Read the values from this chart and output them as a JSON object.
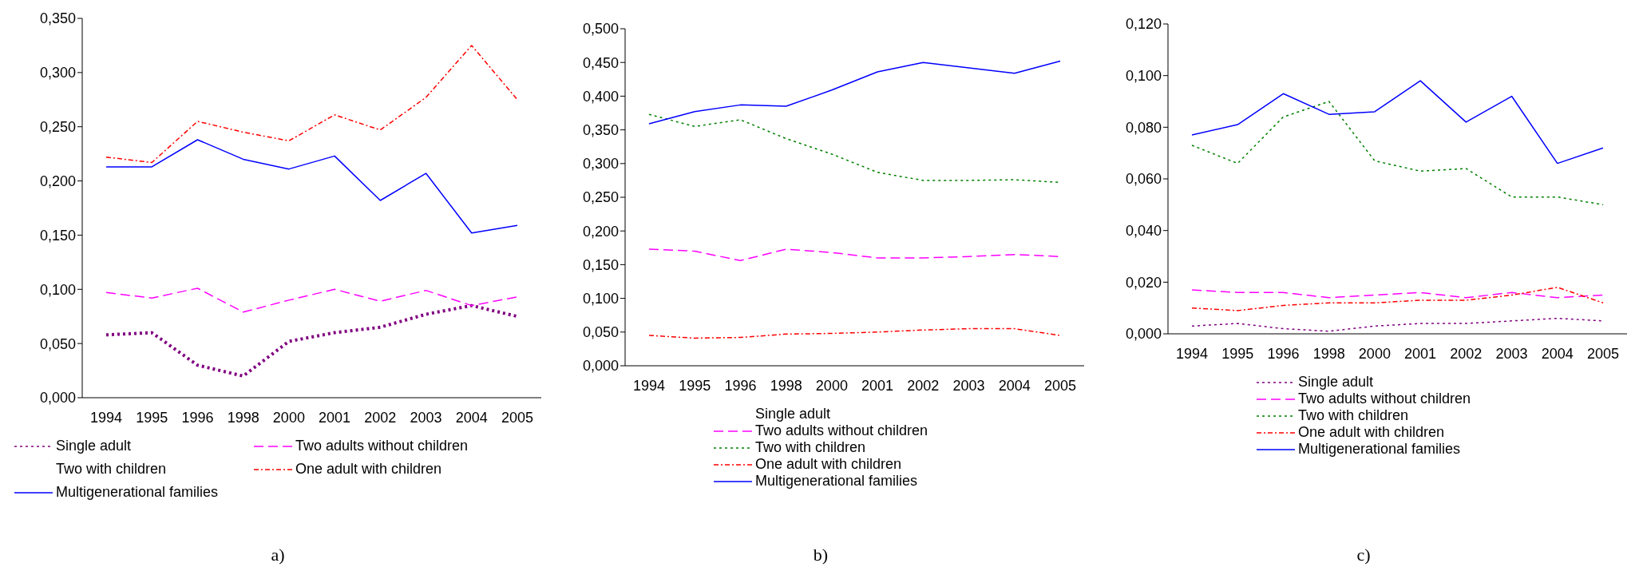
{
  "chart_data": [
    {
      "type": "line",
      "categories": [
        "1994",
        "1995",
        "1996",
        "1998",
        "2000",
        "2001",
        "2002",
        "2003",
        "2004",
        "2005"
      ],
      "ylim": [
        0,
        0.35
      ],
      "yticks": [
        {
          "value": 0,
          "label": "0,000"
        },
        {
          "value": 0.05,
          "label": "0,050"
        },
        {
          "value": 0.1,
          "label": "0,100"
        },
        {
          "value": 0.15,
          "label": "0,150"
        },
        {
          "value": 0.2,
          "label": "0,200"
        },
        {
          "value": 0.25,
          "label": "0,250"
        },
        {
          "value": 0.3,
          "label": "0,300"
        },
        {
          "value": 0.35,
          "label": "0,350"
        }
      ],
      "grid": false,
      "legend": "bottom",
      "annotations": [
        "a)"
      ],
      "series": [
        {
          "name": "Single adult",
          "color": "#800080",
          "line_style": "dotted",
          "values": [
            0.058,
            0.06,
            0.03,
            0.02,
            0.052,
            0.06,
            0.065,
            0.077,
            0.085,
            0.075
          ]
        },
        {
          "name": "Two adults without children",
          "color": "#ff00ff",
          "line_style": "dashed",
          "values": [
            0.097,
            0.092,
            0.101,
            0.079,
            0.09,
            0.1,
            0.089,
            0.099,
            0.085,
            0.093
          ]
        },
        {
          "name": "Two with children",
          "values": [
            null,
            null,
            null,
            null,
            null,
            null,
            null,
            null,
            null,
            null
          ]
        },
        {
          "name": "One adult with children",
          "color": "#ff0000",
          "line_style": "dashdot",
          "values": [
            0.222,
            0.217,
            0.255,
            0.245,
            0.237,
            0.261,
            0.247,
            0.277,
            0.325,
            0.275
          ]
        },
        {
          "name": "Multigenerational families",
          "color": "#0000ff",
          "line_style": "solid",
          "values": [
            0.213,
            0.213,
            0.238,
            0.22,
            0.211,
            0.223,
            0.182,
            0.207,
            0.152,
            0.159
          ]
        }
      ]
    },
    {
      "type": "line",
      "categories": [
        "1994",
        "1995",
        "1996",
        "1998",
        "2000",
        "2001",
        "2002",
        "2003",
        "2004",
        "2005"
      ],
      "ylim": [
        0,
        0.5
      ],
      "yticks": [
        {
          "value": 0,
          "label": "0,000"
        },
        {
          "value": 0.05,
          "label": "0,050"
        },
        {
          "value": 0.1,
          "label": "0,100"
        },
        {
          "value": 0.15,
          "label": "0,150"
        },
        {
          "value": 0.2,
          "label": "0,200"
        },
        {
          "value": 0.25,
          "label": "0,250"
        },
        {
          "value": 0.3,
          "label": "0,300"
        },
        {
          "value": 0.35,
          "label": "0,350"
        },
        {
          "value": 0.4,
          "label": "0,400"
        },
        {
          "value": 0.45,
          "label": "0,450"
        },
        {
          "value": 0.5,
          "label": "0,500"
        }
      ],
      "grid": false,
      "legend": "bottom",
      "annotations": [
        "b)"
      ],
      "series": [
        {
          "name": "Single adult",
          "values": [
            null,
            null,
            null,
            null,
            null,
            null,
            null,
            null,
            null,
            null
          ]
        },
        {
          "name": "Two adults without children",
          "color": "#ff00ff",
          "line_style": "dashed",
          "values": [
            0.173,
            0.17,
            0.156,
            0.173,
            0.168,
            0.16,
            0.16,
            0.162,
            0.165,
            0.162
          ]
        },
        {
          "name": "Two with children",
          "color": "#008000",
          "line_style": "dotted",
          "values": [
            0.373,
            0.355,
            0.365,
            0.337,
            0.314,
            0.287,
            0.275,
            0.275,
            0.276,
            0.272
          ]
        },
        {
          "name": "One adult with children",
          "color": "#ff0000",
          "line_style": "dashdot",
          "values": [
            0.045,
            0.041,
            0.042,
            0.047,
            0.048,
            0.05,
            0.053,
            0.055,
            0.055,
            0.045
          ]
        },
        {
          "name": "Multigenerational families",
          "color": "#0000ff",
          "line_style": "solid",
          "values": [
            0.359,
            0.377,
            0.387,
            0.385,
            0.409,
            0.436,
            0.45,
            0.442,
            0.434,
            0.452
          ]
        }
      ]
    },
    {
      "type": "line",
      "categories": [
        "1994",
        "1995",
        "1996",
        "1998",
        "2000",
        "2001",
        "2002",
        "2003",
        "2004",
        "2005"
      ],
      "ylim": [
        0,
        0.12
      ],
      "yticks": [
        {
          "value": 0,
          "label": "0,000"
        },
        {
          "value": 0.02,
          "label": "0,020"
        },
        {
          "value": 0.04,
          "label": "0,040"
        },
        {
          "value": 0.06,
          "label": "0,060"
        },
        {
          "value": 0.08,
          "label": "0,080"
        },
        {
          "value": 0.1,
          "label": "0,100"
        },
        {
          "value": 0.12,
          "label": "0,120"
        }
      ],
      "grid": false,
      "legend": "bottom",
      "annotations": [
        "c)"
      ],
      "series": [
        {
          "name": "Single adult",
          "color": "#800080",
          "line_style": "dotted",
          "values": [
            0.003,
            0.004,
            0.002,
            0.001,
            0.003,
            0.004,
            0.004,
            0.005,
            0.006,
            0.005
          ]
        },
        {
          "name": "Two adults without children",
          "color": "#ff00ff",
          "line_style": "dashed",
          "values": [
            0.017,
            0.016,
            0.016,
            0.014,
            0.015,
            0.016,
            0.014,
            0.016,
            0.014,
            0.015
          ]
        },
        {
          "name": "Two with children",
          "color": "#008000",
          "line_style": "dotted",
          "values": [
            0.073,
            0.066,
            0.084,
            0.09,
            0.067,
            0.063,
            0.064,
            0.053,
            0.053,
            0.05
          ]
        },
        {
          "name": "One adult with children",
          "color": "#ff0000",
          "line_style": "dashdot",
          "values": [
            0.01,
            0.009,
            0.011,
            0.012,
            0.012,
            0.013,
            0.013,
            0.015,
            0.018,
            0.012
          ]
        },
        {
          "name": "Multigenerational families",
          "color": "#0000ff",
          "line_style": "solid",
          "values": [
            0.077,
            0.081,
            0.093,
            0.085,
            0.086,
            0.098,
            0.082,
            0.092,
            0.066,
            0.072
          ]
        }
      ]
    }
  ]
}
